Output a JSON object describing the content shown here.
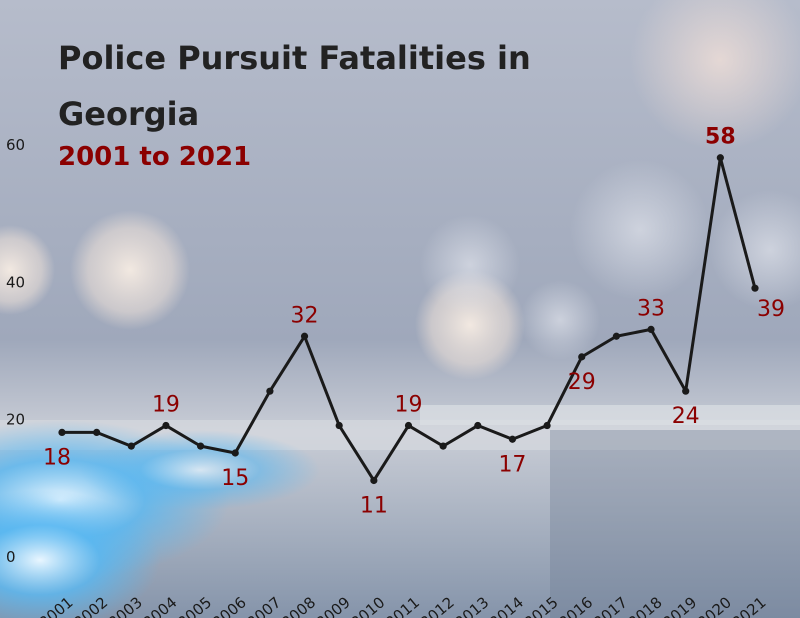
{
  "chart_data": {
    "type": "line",
    "title": "Police Pursuit Fatalities in Georgia",
    "subtitle": "2001 to 2021",
    "xlabel": "",
    "ylabel": "",
    "x": [
      "2001",
      "2002",
      "2003",
      "2004",
      "2005",
      "2006",
      "2007",
      "2008",
      "2009",
      "2010",
      "2011",
      "2012",
      "2013",
      "2014",
      "2015",
      "2016",
      "2017",
      "2018",
      "2019",
      "2020",
      "2021"
    ],
    "values": [
      18,
      18,
      16,
      19,
      16,
      15,
      24,
      32,
      19,
      11,
      19,
      16,
      19,
      17,
      19,
      29,
      32,
      33,
      24,
      58,
      39
    ],
    "labeled_years": [
      "2001",
      "2004",
      "2006",
      "2008",
      "2010",
      "2011",
      "2014",
      "2016",
      "2018",
      "2019",
      "2020",
      "2021"
    ],
    "yticks": [
      0,
      20,
      40,
      60
    ],
    "ylim": [
      0,
      60
    ],
    "grid": false,
    "legend": "none",
    "colors": {
      "line": "#1a1a1a",
      "label": "#8b0000",
      "title": "#222222",
      "subtitle": "#8b0000",
      "axis_text": "#1a1a1a"
    }
  }
}
